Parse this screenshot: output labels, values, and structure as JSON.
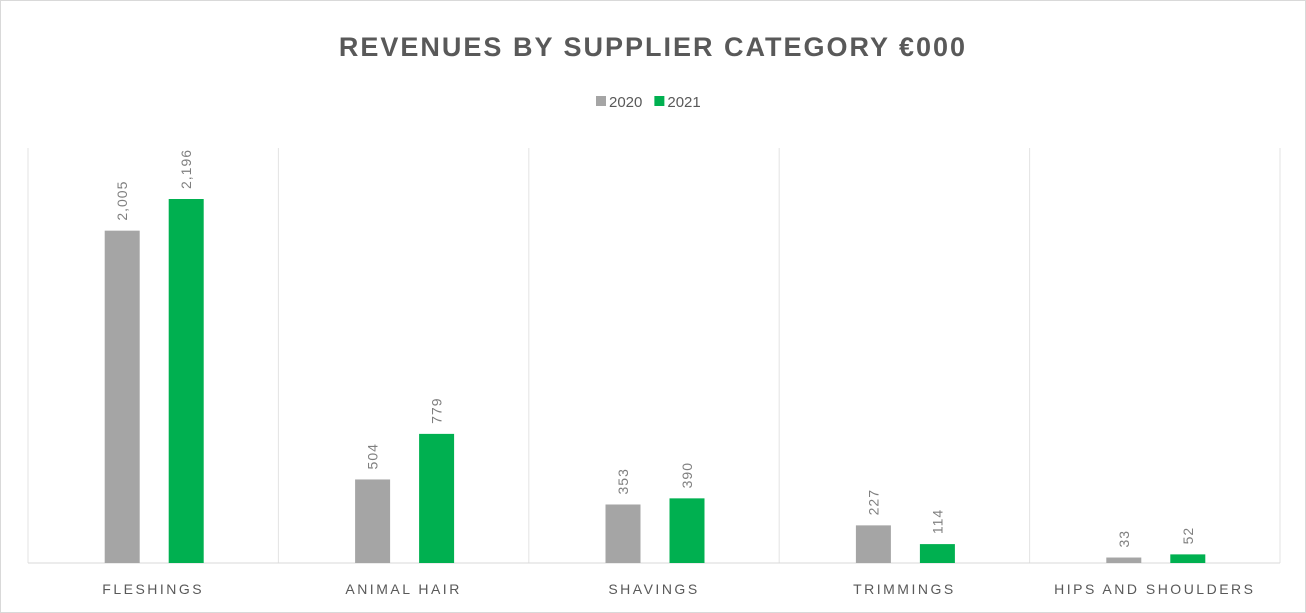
{
  "chart_data": {
    "type": "bar",
    "title": "REVENUES BY SUPPLIER CATEGORY €000",
    "categories": [
      "FLESHINGS",
      "ANIMAL HAIR",
      "SHAVINGS",
      "TRIMMINGS",
      "HIPS AND SHOULDERS"
    ],
    "series": [
      {
        "name": "2020",
        "color": "#a5a5a5",
        "values": [
          2005,
          504,
          353,
          227,
          33
        ],
        "value_labels": [
          "2,005",
          "504",
          "353",
          "227",
          "33"
        ]
      },
      {
        "name": "2021",
        "color": "#00b050",
        "values": [
          2196,
          779,
          390,
          114,
          52
        ],
        "value_labels": [
          "2,196",
          "779",
          "390",
          "114",
          "52"
        ]
      }
    ],
    "legend": "top"
  }
}
